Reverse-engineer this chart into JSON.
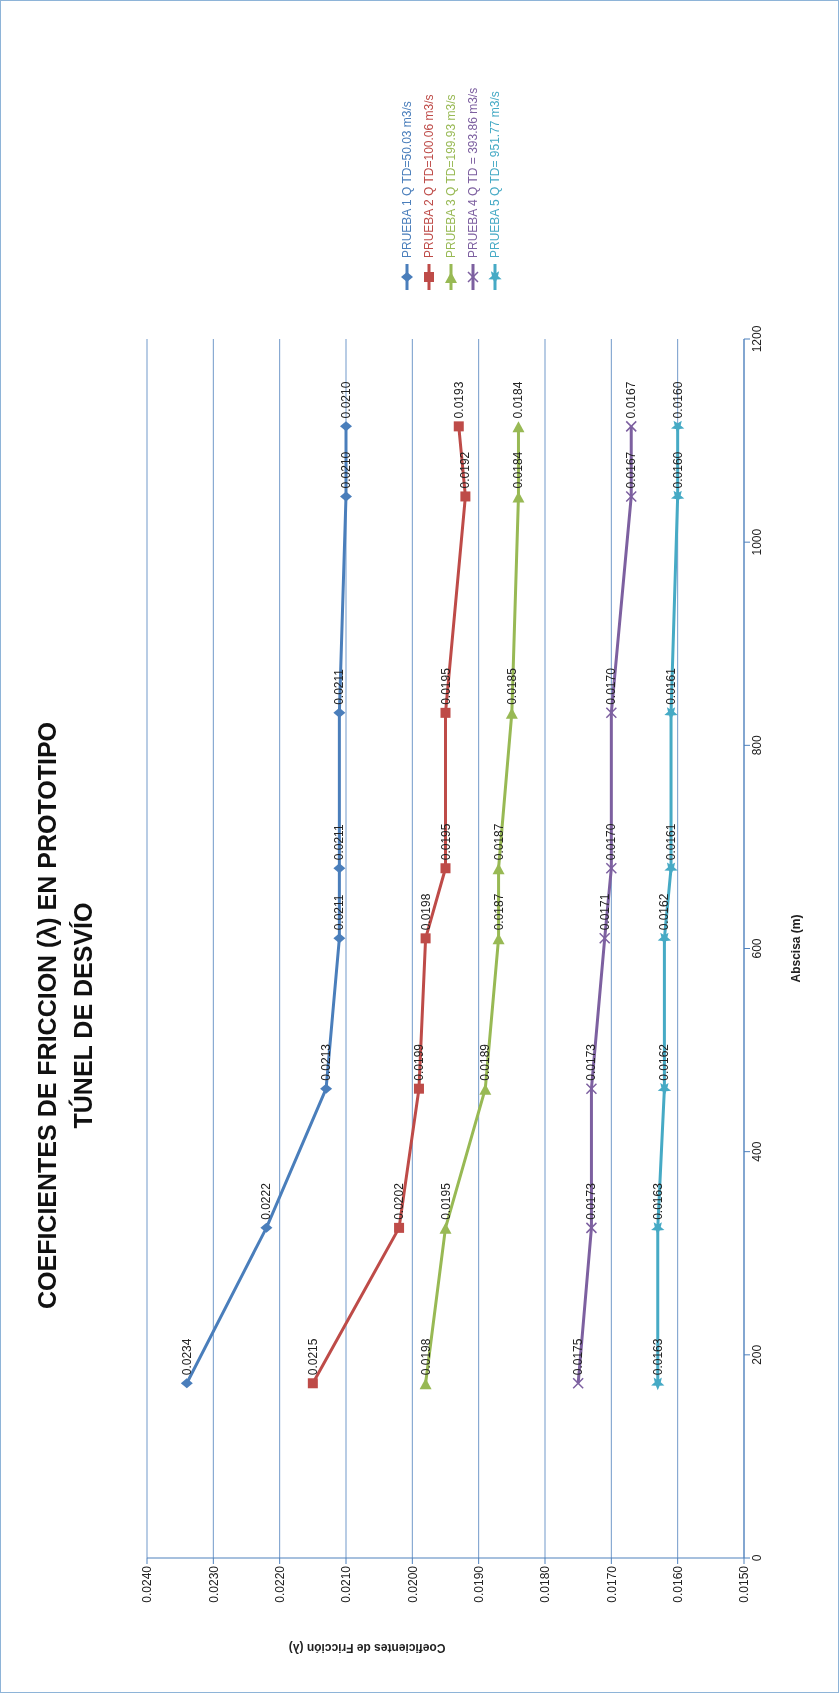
{
  "chart_data": {
    "type": "line",
    "title": "COEFICIENTES DE FRICCION (λ) EN PROTOTIPO",
    "subtitle": "TÚNEL DE DESVÍO",
    "xlabel": "Coeficientes de Fricción (λ)",
    "ylabel": "Abscisa (m)",
    "series": [
      {
        "name": "PRUEBA 1 Q TD=50.03 m3/s",
        "color": "#4a7ebb",
        "marker": "diamond",
        "x": [
          0.0234,
          0.0222,
          0.0213,
          0.0211,
          0.0211,
          0.0211,
          0.021,
          0.021
        ],
        "values": [
          172,
          325,
          462,
          610,
          679,
          832,
          1045,
          1114
        ]
      },
      {
        "name": "PRUEBA 2 Q TD=100.06 m3/s",
        "color": "#be4b48",
        "marker": "square",
        "x": [
          0.0215,
          0.0202,
          0.0199,
          0.0198,
          0.0195,
          0.0195,
          0.0192,
          0.0193
        ],
        "values": [
          172,
          325,
          462,
          610,
          679,
          832,
          1045,
          1114
        ]
      },
      {
        "name": "PRUEBA 3 Q TD=199.93 m3/s",
        "color": "#98b954",
        "marker": "triangle",
        "x": [
          0.0198,
          0.0195,
          0.0189,
          0.0187,
          0.0187,
          0.0185,
          0.0184,
          0.0184
        ],
        "values": [
          172,
          325,
          462,
          610,
          679,
          832,
          1045,
          1114
        ]
      },
      {
        "name": "PRUEBA 4 Q TD = 393.86 m3/s",
        "color": "#7d60a0",
        "marker": "cross",
        "x": [
          0.0175,
          0.0173,
          0.0173,
          0.0171,
          0.017,
          0.017,
          0.0167,
          0.0167
        ],
        "values": [
          172,
          325,
          462,
          610,
          679,
          832,
          1045,
          1114
        ]
      },
      {
        "name": "PRUEBA 5 Q TD= 951.77 m3/s",
        "color": "#46aac5",
        "marker": "star",
        "x": [
          0.0163,
          0.0163,
          0.0162,
          0.0162,
          0.0161,
          0.0161,
          0.016,
          0.016
        ],
        "values": [
          172,
          325,
          462,
          610,
          679,
          832,
          1045,
          1114
        ]
      }
    ],
    "annotations": [
      {
        "text": "0.0234",
        "x": 0.0234,
        "y": 172
      },
      {
        "text": "0.0222",
        "x": 0.0222,
        "y": 325
      },
      {
        "text": "0.0213",
        "x": 0.0213,
        "y": 462
      },
      {
        "text": "0.0211",
        "x": 0.0211,
        "y": 610
      },
      {
        "text": "0.0211",
        "x": 0.0211,
        "y": 679
      },
      {
        "text": "0.0211",
        "x": 0.0211,
        "y": 832
      },
      {
        "text": "0.0210",
        "x": 0.021,
        "y": 1045
      },
      {
        "text": "0.0210",
        "x": 0.021,
        "y": 1114
      },
      {
        "text": "0.0215",
        "x": 0.0215,
        "y": 172
      },
      {
        "text": "0.0202",
        "x": 0.0202,
        "y": 325
      },
      {
        "text": "0.0199",
        "x": 0.0199,
        "y": 462
      },
      {
        "text": "0.0198",
        "x": 0.0198,
        "y": 610
      },
      {
        "text": "0.0195",
        "x": 0.0195,
        "y": 679
      },
      {
        "text": "0.0195",
        "x": 0.0195,
        "y": 832
      },
      {
        "text": "0.0192",
        "x": 0.0192,
        "y": 1045
      },
      {
        "text": "0.0193",
        "x": 0.0193,
        "y": 1114
      },
      {
        "text": "0.0198",
        "x": 0.0198,
        "y": 172
      },
      {
        "text": "0.0195",
        "x": 0.0195,
        "y": 325
      },
      {
        "text": "0.0189",
        "x": 0.0189,
        "y": 462
      },
      {
        "text": "0.0187",
        "x": 0.0187,
        "y": 610
      },
      {
        "text": "0.0187",
        "x": 0.0187,
        "y": 679
      },
      {
        "text": "0.0185",
        "x": 0.0185,
        "y": 832
      },
      {
        "text": "0.0184",
        "x": 0.0184,
        "y": 1045
      },
      {
        "text": "0.0184",
        "x": 0.0184,
        "y": 1114
      },
      {
        "text": "0.0175",
        "x": 0.0175,
        "y": 172
      },
      {
        "text": "0.0173",
        "x": 0.0173,
        "y": 325
      },
      {
        "text": "0.0173",
        "x": 0.0173,
        "y": 462
      },
      {
        "text": "0.0171",
        "x": 0.0171,
        "y": 610
      },
      {
        "text": "0.0170",
        "x": 0.017,
        "y": 679
      },
      {
        "text": "0.0170",
        "x": 0.017,
        "y": 832
      },
      {
        "text": "0.0167",
        "x": 0.0167,
        "y": 1045
      },
      {
        "text": "0.0167",
        "x": 0.0167,
        "y": 1114
      },
      {
        "text": "0.0163",
        "x": 0.0163,
        "y": 172
      },
      {
        "text": "0.0163",
        "x": 0.0163,
        "y": 325
      },
      {
        "text": "0.0162",
        "x": 0.0162,
        "y": 462
      },
      {
        "text": "0.0162",
        "x": 0.0162,
        "y": 610
      },
      {
        "text": "0.0161",
        "x": 0.0161,
        "y": 679
      },
      {
        "text": "0.0161",
        "x": 0.0161,
        "y": 832
      },
      {
        "text": "0.0160",
        "x": 0.016,
        "y": 1045
      },
      {
        "text": "0.0160",
        "x": 0.016,
        "y": 1114
      }
    ],
    "xlim": [
      0.024,
      0.015
    ],
    "xticks": [
      {
        "value": 0.024,
        "label": "0.0240"
      },
      {
        "value": 0.023,
        "label": "0.0230"
      },
      {
        "value": 0.022,
        "label": "0.0220"
      },
      {
        "value": 0.021,
        "label": "0.0210"
      },
      {
        "value": 0.02,
        "label": "0.0200"
      },
      {
        "value": 0.019,
        "label": "0.0190"
      },
      {
        "value": 0.018,
        "label": "0.0180"
      },
      {
        "value": 0.017,
        "label": "0.0170"
      },
      {
        "value": 0.016,
        "label": "0.0160"
      },
      {
        "value": 0.015,
        "label": "0.0150"
      }
    ],
    "ylim": [
      0,
      1200
    ],
    "yticks": [
      0,
      200,
      400,
      600,
      800,
      1000,
      1200
    ],
    "grid": "x",
    "legend": "top"
  }
}
